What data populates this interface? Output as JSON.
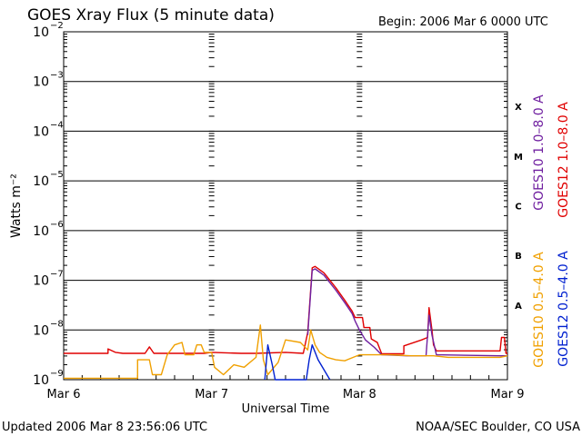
{
  "title": "GOES Xray Flux (5 minute data)",
  "begin": "Begin:  2006 Mar 6 0000 UTC",
  "updated": "Updated 2006 Mar  8 23:56:06 UTC",
  "credit": "NOAA/SEC Boulder, CO USA",
  "chart_data": {
    "type": "line",
    "title": "GOES Xray Flux (5 minute data)",
    "xlabel": "Universal Time",
    "ylabel": "Watts m⁻²",
    "yscale": "log",
    "ylim_exp": [
      -9,
      -2
    ],
    "xlim_days": [
      0,
      3
    ],
    "x_tick_labels": [
      "Mar 6",
      "Mar 7",
      "Mar 8",
      "Mar 9"
    ],
    "y_tick_exponents": [
      -2,
      -3,
      -4,
      -5,
      -6,
      -7,
      -8,
      -9
    ],
    "flare_classes": [
      {
        "label": "X",
        "exp": -3.5
      },
      {
        "label": "M",
        "exp": -4.5
      },
      {
        "label": "C",
        "exp": -5.5
      },
      {
        "label": "B",
        "exp": -6.5
      },
      {
        "label": "A",
        "exp": -7.5
      }
    ],
    "grid": true,
    "legend_right_top": [
      {
        "name": "GOES10 1.0–8.0 A",
        "color": "#7020a0"
      },
      {
        "name": "GOES12 1.0–8.0 A",
        "color": "#e00000"
      }
    ],
    "legend_right_bottom": [
      {
        "name": "GOES10 0.5–4.0 A",
        "color": "#f0a000"
      },
      {
        "name": "GOES12 0.5–4.0 A",
        "color": "#0020d0"
      }
    ],
    "series": [
      {
        "name": "GOES12 1.0–8.0 A",
        "color": "#e00000",
        "points": [
          [
            0.0,
            -8.47
          ],
          [
            0.3,
            -8.47
          ],
          [
            0.3,
            -8.38
          ],
          [
            0.35,
            -8.45
          ],
          [
            0.4,
            -8.47
          ],
          [
            0.55,
            -8.47
          ],
          [
            0.58,
            -8.34
          ],
          [
            0.61,
            -8.47
          ],
          [
            0.95,
            -8.47
          ],
          [
            1.0,
            -8.45
          ],
          [
            1.2,
            -8.47
          ],
          [
            1.3,
            -8.47
          ],
          [
            1.5,
            -8.45
          ],
          [
            1.62,
            -8.47
          ],
          [
            1.65,
            -8.05
          ],
          [
            1.68,
            -6.75
          ],
          [
            1.7,
            -6.72
          ],
          [
            1.76,
            -6.85
          ],
          [
            1.84,
            -7.15
          ],
          [
            1.9,
            -7.4
          ],
          [
            1.95,
            -7.62
          ],
          [
            1.97,
            -7.75
          ],
          [
            2.02,
            -7.75
          ],
          [
            2.03,
            -7.95
          ],
          [
            2.07,
            -7.95
          ],
          [
            2.08,
            -8.18
          ],
          [
            2.12,
            -8.25
          ],
          [
            2.15,
            -8.48
          ],
          [
            2.3,
            -8.48
          ],
          [
            2.3,
            -8.32
          ],
          [
            2.42,
            -8.2
          ],
          [
            2.46,
            -8.15
          ],
          [
            2.47,
            -7.55
          ],
          [
            2.49,
            -8.0
          ],
          [
            2.5,
            -8.3
          ],
          [
            2.52,
            -8.42
          ],
          [
            2.95,
            -8.42
          ],
          [
            2.96,
            -8.15
          ],
          [
            2.98,
            -8.15
          ],
          [
            2.99,
            -8.47
          ],
          [
            3.0,
            -8.47
          ]
        ]
      },
      {
        "name": "GOES10 1.0–8.0 A",
        "color": "#7020a0",
        "points": [
          [
            1.65,
            -8.1
          ],
          [
            1.68,
            -6.8
          ],
          [
            1.7,
            -6.77
          ],
          [
            1.76,
            -6.9
          ],
          [
            1.84,
            -7.2
          ],
          [
            1.9,
            -7.45
          ],
          [
            1.95,
            -7.67
          ],
          [
            1.97,
            -7.82
          ],
          [
            2.0,
            -8.0
          ],
          [
            2.04,
            -8.2
          ],
          [
            2.1,
            -8.35
          ],
          [
            2.15,
            -8.5
          ],
          [
            2.32,
            -8.52
          ],
          [
            2.45,
            -8.52
          ],
          [
            2.47,
            -7.7
          ],
          [
            2.49,
            -8.1
          ],
          [
            2.52,
            -8.5
          ],
          [
            2.95,
            -8.52
          ],
          [
            3.0,
            -8.52
          ]
        ]
      },
      {
        "name": "GOES10 0.5–4.0 A",
        "color": "#f0a000",
        "points": [
          [
            0.0,
            -8.97
          ],
          [
            0.42,
            -8.97
          ],
          [
            0.5,
            -8.97
          ],
          [
            0.5,
            -8.6
          ],
          [
            0.58,
            -8.6
          ],
          [
            0.6,
            -8.9
          ],
          [
            0.66,
            -8.9
          ],
          [
            0.7,
            -8.5
          ],
          [
            0.75,
            -8.3
          ],
          [
            0.8,
            -8.25
          ],
          [
            0.82,
            -8.5
          ],
          [
            0.88,
            -8.5
          ],
          [
            0.9,
            -8.3
          ],
          [
            0.93,
            -8.3
          ],
          [
            0.95,
            -8.45
          ],
          [
            1.0,
            -8.45
          ],
          [
            1.02,
            -8.75
          ],
          [
            1.08,
            -8.9
          ],
          [
            1.15,
            -8.7
          ],
          [
            1.22,
            -8.75
          ],
          [
            1.3,
            -8.55
          ],
          [
            1.33,
            -7.9
          ],
          [
            1.35,
            -8.6
          ],
          [
            1.38,
            -8.9
          ],
          [
            1.45,
            -8.65
          ],
          [
            1.5,
            -8.2
          ],
          [
            1.6,
            -8.25
          ],
          [
            1.65,
            -8.4
          ],
          [
            1.67,
            -8.0
          ],
          [
            1.7,
            -8.3
          ],
          [
            1.73,
            -8.45
          ],
          [
            1.78,
            -8.55
          ],
          [
            1.84,
            -8.6
          ],
          [
            1.9,
            -8.62
          ],
          [
            2.0,
            -8.5
          ],
          [
            2.2,
            -8.5
          ],
          [
            2.35,
            -8.52
          ],
          [
            2.5,
            -8.52
          ],
          [
            2.6,
            -8.55
          ],
          [
            2.95,
            -8.55
          ],
          [
            3.0,
            -8.52
          ]
        ]
      },
      {
        "name": "GOES12 0.5–4.0 A",
        "color": "#0020d0",
        "points": [
          [
            1.36,
            -9.0
          ],
          [
            1.38,
            -8.3
          ],
          [
            1.41,
            -8.7
          ],
          [
            1.43,
            -9.0
          ],
          [
            1.48,
            -9.0
          ],
          [
            1.55,
            -9.0
          ],
          [
            1.64,
            -9.0
          ],
          [
            1.66,
            -8.6
          ],
          [
            1.68,
            -8.3
          ],
          [
            1.72,
            -8.6
          ],
          [
            1.78,
            -8.9
          ],
          [
            1.8,
            -9.0
          ]
        ]
      }
    ]
  }
}
